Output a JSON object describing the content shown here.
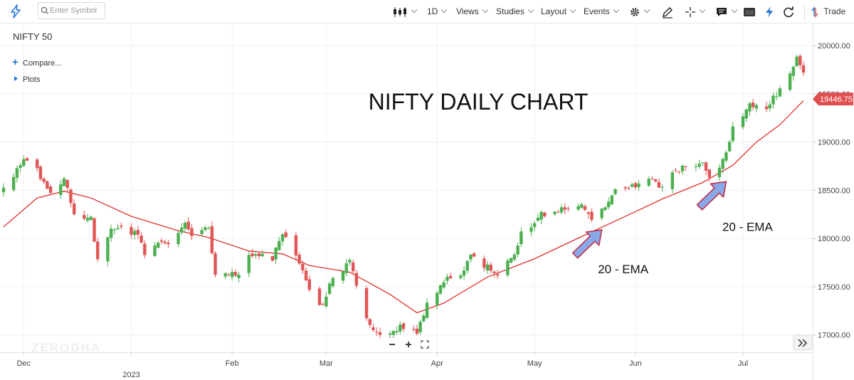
{
  "toolbar": {
    "search_placeholder": "Enter Symbol",
    "interval": "1D",
    "views": "Views",
    "studies": "Studies",
    "layout": "Layout",
    "events": "Events",
    "trade": "Trade"
  },
  "symbol": "NIFTY 50",
  "compare_label": "Compare...",
  "plots_label": "Plots",
  "watermark": "ZERODHA",
  "last_price_label": "19446.75",
  "colors": {
    "up": "#4caf50",
    "down": "#e05555",
    "ema": "#e03030",
    "arrow": "#88a8e8",
    "arrow_stroke": "#c0304c",
    "accent": "#2874d8"
  },
  "chart_data": {
    "type": "candlestick",
    "title": "NIFTY DAILY CHART",
    "x_ticks": [
      {
        "label": "Dec",
        "date": "2022-12-01"
      },
      {
        "label": "2023",
        "date": "2023-01-02"
      },
      {
        "label": "Feb",
        "date": "2023-02-01"
      },
      {
        "label": "Mar",
        "date": "2023-03-01"
      },
      {
        "label": "Apr",
        "date": "2023-04-03"
      },
      {
        "label": "May",
        "date": "2023-05-02"
      },
      {
        "label": "Jun",
        "date": "2023-06-01"
      },
      {
        "label": "Jul",
        "date": "2023-07-03"
      }
    ],
    "x_range": [
      "2022-11-25",
      "2023-07-21"
    ],
    "ylim": [
      16820,
      20230
    ],
    "y_ticks": [
      17000,
      17500,
      18000,
      18500,
      19000,
      19500,
      20000
    ],
    "y_tick_labels": [
      "17000.00",
      "17500.00",
      "18000.00",
      "18500.00",
      "19000.00",
      "19500.00",
      "20000.00"
    ],
    "grid": true,
    "last_price": 19446.75,
    "close_anchors": [
      [
        "2022-11-25",
        18500
      ],
      [
        "2022-12-01",
        18800
      ],
      [
        "2022-12-05",
        18700
      ],
      [
        "2022-12-09",
        18500
      ],
      [
        "2022-12-13",
        18600
      ],
      [
        "2022-12-16",
        18270
      ],
      [
        "2022-12-21",
        18200
      ],
      [
        "2022-12-23",
        17800
      ],
      [
        "2022-12-27",
        18100
      ],
      [
        "2022-12-30",
        18100
      ],
      [
        "2023-01-04",
        18050
      ],
      [
        "2023-01-06",
        17850
      ],
      [
        "2023-01-10",
        17950
      ],
      [
        "2023-01-13",
        17950
      ],
      [
        "2023-01-18",
        18150
      ],
      [
        "2023-01-20",
        18050
      ],
      [
        "2023-01-25",
        18100
      ],
      [
        "2023-01-27",
        17600
      ],
      [
        "2023-01-31",
        17650
      ],
      [
        "2023-02-02",
        17600
      ],
      [
        "2023-02-06",
        17800
      ],
      [
        "2023-02-09",
        17850
      ],
      [
        "2023-02-13",
        17800
      ],
      [
        "2023-02-16",
        18050
      ],
      [
        "2023-02-20",
        17850
      ],
      [
        "2023-02-24",
        17450
      ],
      [
        "2023-02-28",
        17300
      ],
      [
        "2023-03-03",
        17600
      ],
      [
        "2023-03-08",
        17750
      ],
      [
        "2023-03-13",
        17150
      ],
      [
        "2023-03-16",
        17000
      ],
      [
        "2023-03-20",
        16980
      ],
      [
        "2023-03-23",
        17100
      ],
      [
        "2023-03-28",
        17000
      ],
      [
        "2023-03-31",
        17350
      ],
      [
        "2023-04-05",
        17550
      ],
      [
        "2023-04-10",
        17650
      ],
      [
        "2023-04-13",
        17800
      ],
      [
        "2023-04-18",
        17700
      ],
      [
        "2023-04-21",
        17650
      ],
      [
        "2023-04-26",
        17800
      ],
      [
        "2023-04-28",
        18050
      ],
      [
        "2023-05-04",
        18250
      ],
      [
        "2023-05-09",
        18300
      ],
      [
        "2023-05-12",
        18300
      ],
      [
        "2023-05-16",
        18350
      ],
      [
        "2023-05-19",
        18200
      ],
      [
        "2023-05-23",
        18300
      ],
      [
        "2023-05-26",
        18500
      ],
      [
        "2023-05-31",
        18550
      ],
      [
        "2023-06-05",
        18600
      ],
      [
        "2023-06-09",
        18550
      ],
      [
        "2023-06-13",
        18700
      ],
      [
        "2023-06-16",
        18750
      ],
      [
        "2023-06-21",
        18800
      ],
      [
        "2023-06-23",
        18650
      ],
      [
        "2023-06-27",
        18800
      ],
      [
        "2023-06-30",
        19150
      ],
      [
        "2023-07-05",
        19400
      ],
      [
        "2023-07-10",
        19350
      ],
      [
        "2023-07-14",
        19550
      ],
      [
        "2023-07-17",
        19700
      ],
      [
        "2023-07-19",
        19900
      ],
      [
        "2023-07-21",
        19700
      ]
    ],
    "ema": {
      "name": "20 - EMA",
      "values": [
        [
          "2022-11-25",
          18120
        ],
        [
          "2022-12-05",
          18420
        ],
        [
          "2022-12-13",
          18490
        ],
        [
          "2022-12-21",
          18420
        ],
        [
          "2023-01-02",
          18230
        ],
        [
          "2023-01-16",
          18080
        ],
        [
          "2023-01-25",
          18010
        ],
        [
          "2023-02-06",
          17870
        ],
        [
          "2023-02-16",
          17840
        ],
        [
          "2023-02-24",
          17720
        ],
        [
          "2023-03-08",
          17650
        ],
        [
          "2023-03-20",
          17420
        ],
        [
          "2023-03-28",
          17230
        ],
        [
          "2023-04-05",
          17330
        ],
        [
          "2023-04-18",
          17600
        ],
        [
          "2023-05-02",
          17790
        ],
        [
          "2023-05-16",
          18020
        ],
        [
          "2023-05-26",
          18180
        ],
        [
          "2023-06-09",
          18410
        ],
        [
          "2023-06-21",
          18580
        ],
        [
          "2023-06-30",
          18760
        ],
        [
          "2023-07-07",
          19000
        ],
        [
          "2023-07-14",
          19180
        ],
        [
          "2023-07-21",
          19430
        ]
      ]
    },
    "annotations": [
      {
        "text": "20 - EMA",
        "date": "2023-05-22",
        "value": 18090,
        "label_value": 17640
      },
      {
        "text": "20 - EMA",
        "date": "2023-06-28",
        "value": 18590,
        "label_value": 18080
      }
    ]
  }
}
